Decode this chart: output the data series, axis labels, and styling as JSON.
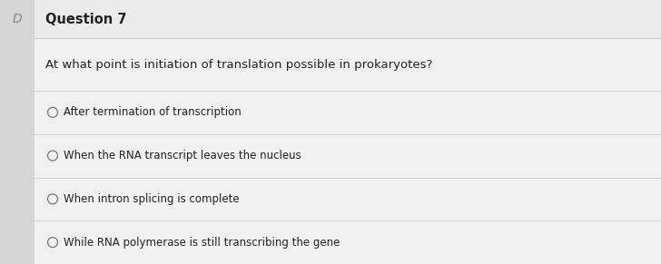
{
  "title": "Question 7",
  "question": "At what point is initiation of translation possible in prokaryotes?",
  "options": [
    "After termination of transcription",
    "When the RNA transcript leaves the nucleus",
    "When intron splicing is complete",
    "While RNA polymerase is still transcribing the gene"
  ],
  "bg_color": "#e8e8e8",
  "header_bg_color": "#ebebeb",
  "content_bg_color": "#f0f0f0",
  "left_strip_color": "#d5d5d5",
  "title_fontsize": 10.5,
  "question_fontsize": 9.5,
  "option_fontsize": 8.5,
  "title_color": "#222222",
  "question_color": "#222222",
  "option_color": "#222222",
  "circle_color": "#777777",
  "line_color": "#cccccc",
  "checkbox_color": "#888888"
}
